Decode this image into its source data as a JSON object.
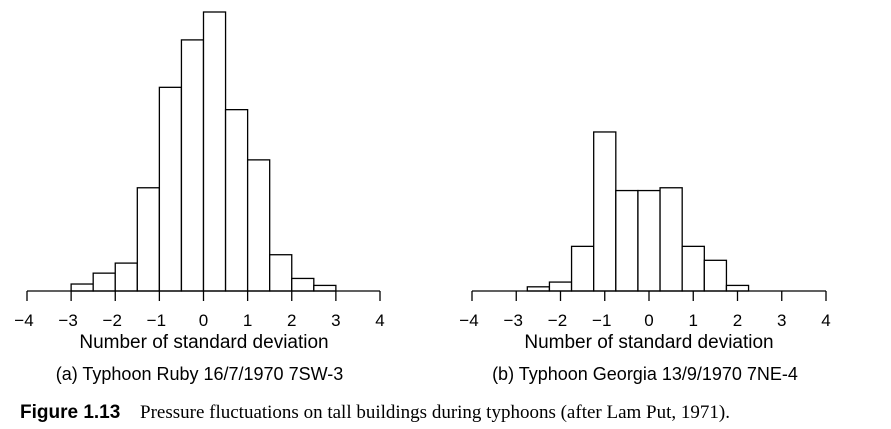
{
  "chart_data": [
    {
      "type": "bar",
      "subcaption": "(a) Typhoon Ruby 16/7/1970 7SW-3",
      "xlabel": "Number of standard deviation",
      "xlim": [
        -4,
        4
      ],
      "ticks": [
        "−4",
        "−3",
        "−2",
        "−1",
        "0",
        "1",
        "2",
        "3",
        "4"
      ],
      "bin_width": 0.5,
      "bin_starts": [
        -3.5,
        -3.0,
        -2.5,
        -2.0,
        -1.5,
        -1.0,
        -0.5,
        0.0,
        0.5,
        1.0,
        1.5,
        2.0,
        2.5,
        3.0
      ],
      "values": [
        0.0,
        0.025,
        0.064,
        0.1,
        0.37,
        0.73,
        0.9,
        1.0,
        0.65,
        0.47,
        0.13,
        0.045,
        0.02,
        0.0
      ]
    },
    {
      "type": "bar",
      "subcaption": "(b) Typhoon Georgia 13/9/1970 7NE-4",
      "xlabel": "Number of standard deviation",
      "xlim": [
        -4,
        4
      ],
      "ticks": [
        "−4",
        "−3",
        "−2",
        "−1",
        "0",
        "1",
        "2",
        "3",
        "4"
      ],
      "bin_width": 0.5,
      "bin_starts": [
        -2.75,
        -2.25,
        -1.75,
        -1.25,
        -0.75,
        -0.25,
        0.25,
        0.75,
        1.25,
        1.75,
        2.25
      ],
      "values": [
        0.015,
        0.032,
        0.16,
        0.57,
        0.36,
        0.36,
        0.37,
        0.16,
        0.11,
        0.02,
        0.0
      ]
    }
  ],
  "caption": {
    "figure_number": "Figure 1.13",
    "text": "Pressure fluctuations on tall buildings during typhoons (after Lam Put, 1971)."
  }
}
